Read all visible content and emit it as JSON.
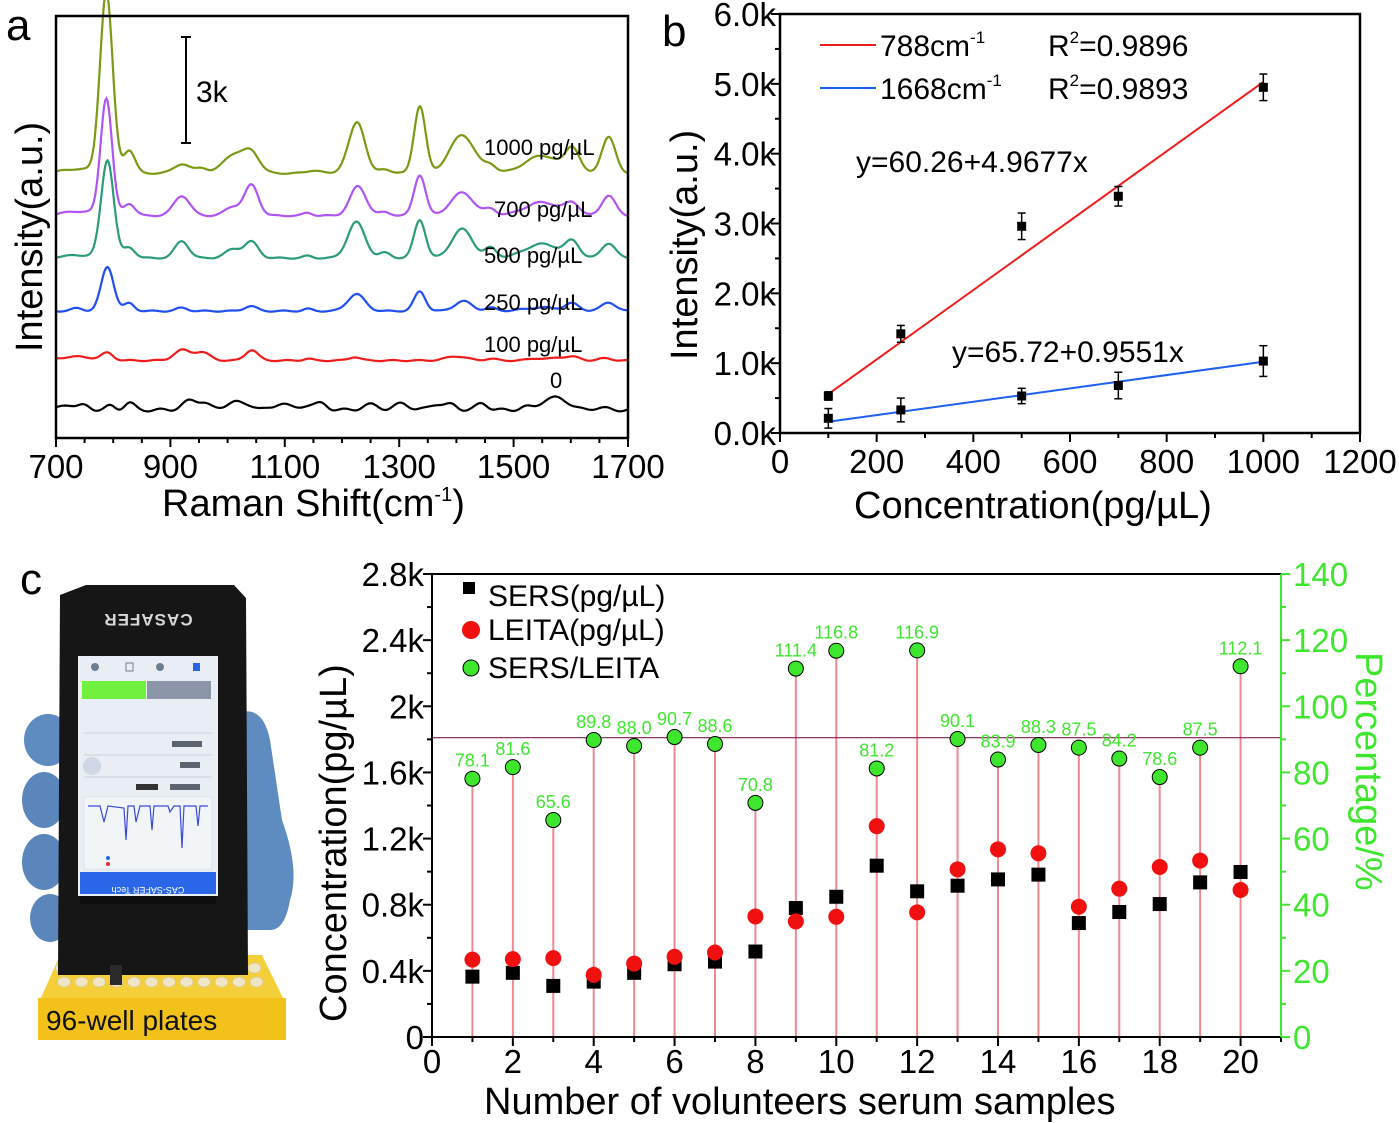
{
  "figure": {
    "panel_labels": {
      "a": "a",
      "b": "b",
      "c": "c"
    },
    "photo": {
      "device_brand": "CASAFER",
      "screen_header": "CAS-SAFER Tech",
      "caption": "96-well plates",
      "colors": {
        "device": "#161616",
        "glove": "#5f8cc0",
        "plate": "#f2c21a",
        "screen": "#e8eef4",
        "screen_header": "#2a66e8",
        "screen_button": "#6ef03c"
      }
    }
  },
  "chart_data": [
    {
      "id": "a",
      "type": "line",
      "title": "",
      "xlabel": "Raman Shift(cm",
      "xlabel_sup": "-1",
      "xlabel_close": ")",
      "ylabel": "Intensity(a.u.)",
      "xlim": [
        700,
        1700
      ],
      "xticks": [
        700,
        900,
        1100,
        1300,
        1500,
        1700
      ],
      "x_minor_step": 50,
      "yticks_shown": false,
      "scale_bar": {
        "label": "3k",
        "value": 3000
      },
      "baseline_offsets_note": "spectra vertically stacked",
      "series": [
        {
          "name": "0",
          "label": "0",
          "color": "#000000",
          "offset": 0,
          "scale": 0.0,
          "peaks": [
            [
              720,
              160,
              12
            ],
            [
              750,
              120,
              10
            ],
            [
              795,
              110,
              8
            ],
            [
              828,
              200,
              9
            ],
            [
              935,
              260,
              14
            ],
            [
              960,
              170,
              10
            ],
            [
              1010,
              230,
              14
            ],
            [
              1040,
              120,
              12
            ],
            [
              1095,
              200,
              12
            ],
            [
              1140,
              140,
              12
            ],
            [
              1165,
              170,
              10
            ],
            [
              1250,
              150,
              14
            ],
            [
              1305,
              190,
              12
            ],
            [
              1365,
              170,
              12
            ],
            [
              1392,
              140,
              10
            ],
            [
              1445,
              190,
              10
            ],
            [
              1520,
              80,
              10
            ],
            [
              1555,
              200,
              14
            ],
            [
              1582,
              300,
              16
            ],
            [
              1650,
              60,
              14
            ]
          ]
        },
        {
          "name": "100 pg/µL",
          "label": "100 pg/µL",
          "color": "#f01c1c",
          "offset": 1400,
          "peaks": [
            [
              735,
              110,
              30
            ],
            [
              790,
              200,
              10
            ],
            [
              920,
              290,
              14
            ],
            [
              955,
              230,
              14
            ],
            [
              1042,
              300,
              11
            ],
            [
              1140,
              50,
              8
            ],
            [
              1222,
              100,
              10
            ],
            [
              1400,
              120,
              18
            ],
            [
              1460,
              50,
              10
            ],
            [
              1540,
              60,
              14
            ],
            [
              1580,
              80,
              14
            ],
            [
              1605,
              90,
              12
            ],
            [
              1660,
              60,
              12
            ]
          ]
        },
        {
          "name": "250 pg/µL",
          "label": "250 pg/µL",
          "color": "#1f4ff0",
          "offset": 2800,
          "peaks": [
            [
              737,
              80,
              10
            ],
            [
              790,
              1250,
              11
            ],
            [
              828,
              220,
              9
            ],
            [
              920,
              90,
              10
            ],
            [
              1040,
              140,
              11
            ],
            [
              1140,
              60,
              8
            ],
            [
              1225,
              480,
              15
            ],
            [
              1336,
              550,
              10
            ],
            [
              1412,
              280,
              15
            ],
            [
              1460,
              90,
              10
            ],
            [
              1550,
              100,
              30
            ],
            [
              1603,
              200,
              12
            ],
            [
              1666,
              250,
              12
            ]
          ]
        },
        {
          "name": "500 pg/µL",
          "label": "500 pg/µL",
          "color": "#2a9b7b",
          "offset": 4300,
          "peaks": [
            [
              740,
              80,
              30
            ],
            [
              790,
              2760,
              11
            ],
            [
              828,
              300,
              10
            ],
            [
              920,
              480,
              12
            ],
            [
              1010,
              250,
              14
            ],
            [
              1042,
              450,
              12
            ],
            [
              1140,
              60,
              8
            ],
            [
              1225,
              1020,
              15
            ],
            [
              1275,
              150,
              10
            ],
            [
              1336,
              1080,
              10
            ],
            [
              1410,
              820,
              18
            ],
            [
              1460,
              280,
              10
            ],
            [
              1550,
              400,
              30
            ],
            [
              1603,
              430,
              12
            ],
            [
              1666,
              420,
              12
            ]
          ]
        },
        {
          "name": "700 pg/µL",
          "label": "700 pg/µL",
          "color": "#b054f2",
          "offset": 5500,
          "peaks": [
            [
              740,
              120,
              30
            ],
            [
              788,
              3300,
              10
            ],
            [
              828,
              340,
              10
            ],
            [
              920,
              560,
              14
            ],
            [
              1010,
              250,
              14
            ],
            [
              1042,
              860,
              12
            ],
            [
              1140,
              80,
              8
            ],
            [
              1228,
              830,
              14
            ],
            [
              1275,
              100,
              10
            ],
            [
              1336,
              1150,
              10
            ],
            [
              1410,
              650,
              20
            ],
            [
              1460,
              180,
              10
            ],
            [
              1550,
              380,
              30
            ],
            [
              1603,
              320,
              12
            ],
            [
              1666,
              570,
              12
            ]
          ]
        },
        {
          "name": "1000 pg/µL",
          "label": "1000 pg/µL",
          "color": "#7a9a14",
          "offset": 6700,
          "peaks": [
            [
              740,
              120,
              30
            ],
            [
              788,
              5100,
              11
            ],
            [
              828,
              650,
              10
            ],
            [
              920,
              260,
              14
            ],
            [
              955,
              150,
              10
            ],
            [
              1010,
              520,
              18
            ],
            [
              1042,
              560,
              14
            ],
            [
              1150,
              80,
              12
            ],
            [
              1210,
              250,
              12
            ],
            [
              1228,
              1360,
              13
            ],
            [
              1275,
              120,
              10
            ],
            [
              1336,
              1900,
              10
            ],
            [
              1410,
              1080,
              22
            ],
            [
              1460,
              200,
              10
            ],
            [
              1550,
              500,
              30
            ],
            [
              1603,
              670,
              12
            ],
            [
              1666,
              1020,
              12
            ]
          ]
        }
      ]
    },
    {
      "id": "b",
      "type": "scatter",
      "title": "",
      "xlabel": "Concentration(pg/µL)",
      "ylabel": "Intensity(a.u.)",
      "xlim": [
        0,
        1200
      ],
      "ylim": [
        0,
        6000
      ],
      "xticks": [
        0,
        200,
        400,
        600,
        800,
        1000,
        1200
      ],
      "yticks": [
        0,
        1000,
        2000,
        3000,
        4000,
        5000,
        6000
      ],
      "ytick_labels": [
        "0.0k",
        "1.0k",
        "2.0k",
        "3.0k",
        "4.0k",
        "5.0k",
        "6.0k"
      ],
      "legend_position": "top-left",
      "series": [
        {
          "name": "788cm-1",
          "legend_main": "788cm",
          "legend_sup": "-1",
          "r2_label": "R",
          "r2_sup": "2",
          "r2_value": "=0.9896",
          "line_color": "#f01c1c",
          "marker_color": "#000000",
          "x": [
            100,
            250,
            500,
            700,
            1000
          ],
          "y": [
            530,
            1420,
            2960,
            3390,
            4950
          ],
          "yerr": [
            60,
            120,
            190,
            140,
            190
          ],
          "fit": {
            "intercept": 60.26,
            "slope": 4.9677,
            "equation": "y=60.26+4.9677x",
            "x_range": [
              100,
              1000
            ]
          }
        },
        {
          "name": "1668cm-1",
          "legend_main": "1668cm",
          "legend_sup": "-1",
          "r2_label": "R",
          "r2_sup": "2",
          "r2_value": "=0.9893",
          "line_color": "#1f5ff0",
          "marker_color": "#000000",
          "x": [
            100,
            250,
            500,
            700,
            1000
          ],
          "y": [
            210,
            330,
            530,
            680,
            1030
          ],
          "yerr": [
            140,
            170,
            110,
            190,
            220
          ],
          "fit": {
            "intercept": 65.72,
            "slope": 0.9551,
            "equation": "y=65.72+0.9551x",
            "x_range": [
              100,
              1000
            ]
          }
        }
      ]
    },
    {
      "id": "c",
      "type": "scatter",
      "title": "",
      "xlabel": "Number of volunteers serum samples",
      "ylabel": "Concentration(pg/µL)",
      "y2label": "Percentage/%",
      "xlim": [
        0,
        21
      ],
      "ylim": [
        0,
        2800
      ],
      "y2lim": [
        0,
        140
      ],
      "xticks": [
        0,
        2,
        4,
        6,
        8,
        10,
        12,
        14,
        16,
        18,
        20
      ],
      "yticks": [
        0,
        400,
        800,
        1200,
        1600,
        2000,
        2400,
        2800
      ],
      "ytick_labels": [
        "0",
        "0.4k",
        "0.8k",
        "1.2k",
        "1.6k",
        "2k",
        "2.4k",
        "2.8k"
      ],
      "y2ticks": [
        0,
        20,
        40,
        60,
        80,
        100,
        120,
        140
      ],
      "reference_line_percent": 90.5,
      "reference_line_color": "#7a2050",
      "stem_color": "#f08890",
      "legend_position": "top-left",
      "categories": [
        1,
        2,
        3,
        4,
        5,
        6,
        7,
        8,
        9,
        10,
        11,
        12,
        13,
        14,
        15,
        16,
        17,
        18,
        19,
        20
      ],
      "series": [
        {
          "name": "SERS(pg/µL)",
          "marker": "square",
          "color": "#000000",
          "axis": "left",
          "values": [
            365,
            388,
            309,
            335,
            388,
            440,
            456,
            517,
            780,
            848,
            1036,
            881,
            915,
            953,
            982,
            689,
            756,
            804,
            935,
            998
          ]
        },
        {
          "name": "LEITA(pg/µL)",
          "marker": "circle",
          "color": "#f01010",
          "axis": "left",
          "values": [
            468,
            471,
            477,
            376,
            444,
            485,
            511,
            729,
            699,
            727,
            1275,
            754,
            1014,
            1135,
            1111,
            788,
            897,
            1028,
            1067,
            889
          ]
        },
        {
          "name": "SERS/LEITA",
          "marker": "circle-outlined",
          "color": "#3ee62e",
          "axis": "right",
          "values": [
            78.1,
            81.6,
            65.6,
            89.8,
            88.0,
            90.7,
            88.6,
            70.8,
            111.4,
            116.8,
            81.2,
            116.9,
            90.1,
            83.9,
            88.3,
            87.5,
            84.2,
            78.6,
            87.5,
            112.1
          ],
          "value_labels": [
            "78.1",
            "81.6",
            "65.6",
            "89.8",
            "88.0",
            "90.7",
            "88.6",
            "70.8",
            "111.4",
            "116.8",
            "81.2",
            "116.9",
            "90.1",
            "83.9",
            "88.3",
            "87.5",
            "84.2",
            "78.6",
            "87.5",
            "112.1"
          ]
        }
      ]
    }
  ]
}
